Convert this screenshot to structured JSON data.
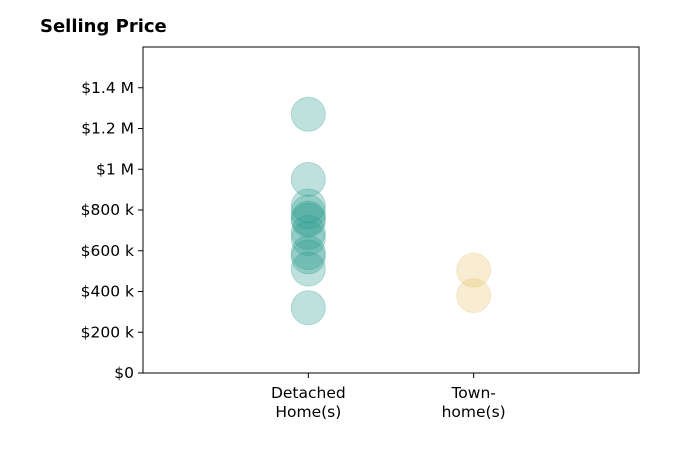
{
  "chart_data": {
    "type": "scatter",
    "title": "Selling Price",
    "xlabel": "",
    "ylabel": "",
    "categories": [
      "Detached\nHome(s)",
      "Town-\nhome(s)"
    ],
    "ylim": [
      0,
      1600000
    ],
    "yticks": [
      {
        "value": 0,
        "label": "$0"
      },
      {
        "value": 200000,
        "label": "$200 k"
      },
      {
        "value": 400000,
        "label": "$400 k"
      },
      {
        "value": 600000,
        "label": "$600 k"
      },
      {
        "value": 800000,
        "label": "$800 k"
      },
      {
        "value": 1000000,
        "label": "$1 M"
      },
      {
        "value": 1200000,
        "label": "$1.2 M"
      },
      {
        "value": 1400000,
        "label": "$1.4 M"
      }
    ],
    "grid": false,
    "series": [
      {
        "category": "Detached\nHome(s)",
        "color": "#2a9d8f",
        "values": [
          1270000,
          950000,
          820000,
          790000,
          760000,
          750000,
          690000,
          660000,
          590000,
          570000,
          510000,
          320000
        ]
      },
      {
        "category": "Town-\nhome(s)",
        "color": "#e9c46a",
        "values": [
          505000,
          380000
        ]
      }
    ]
  }
}
